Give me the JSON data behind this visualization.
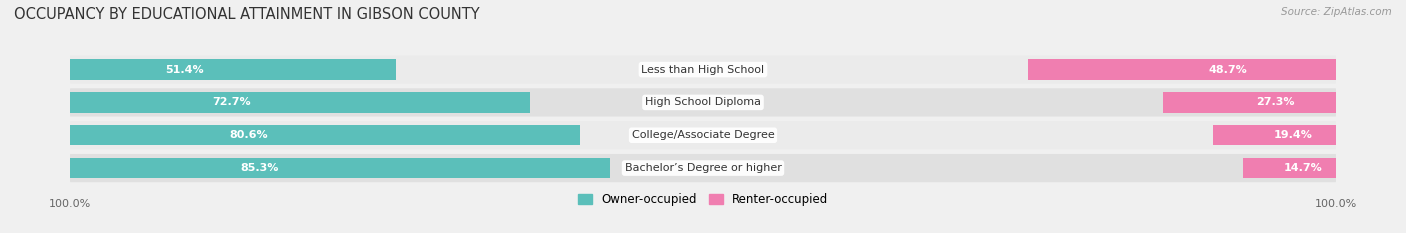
{
  "title": "OCCUPANCY BY EDUCATIONAL ATTAINMENT IN GIBSON COUNTY",
  "source": "Source: ZipAtlas.com",
  "categories": [
    "Less than High School",
    "High School Diploma",
    "College/Associate Degree",
    "Bachelor’s Degree or higher"
  ],
  "owner_pct": [
    51.4,
    72.7,
    80.6,
    85.3
  ],
  "renter_pct": [
    48.7,
    27.3,
    19.4,
    14.7
  ],
  "owner_color": "#5BBFBA",
  "renter_color": "#F07EB0",
  "background_color": "#f0f0f0",
  "row_bg_even": "#ebebeb",
  "row_bg_odd": "#e0e0e0",
  "title_fontsize": 10.5,
  "source_fontsize": 7.5,
  "legend_fontsize": 8.5,
  "bar_label_fontsize": 8,
  "category_fontsize": 8,
  "axis_label_fontsize": 8
}
